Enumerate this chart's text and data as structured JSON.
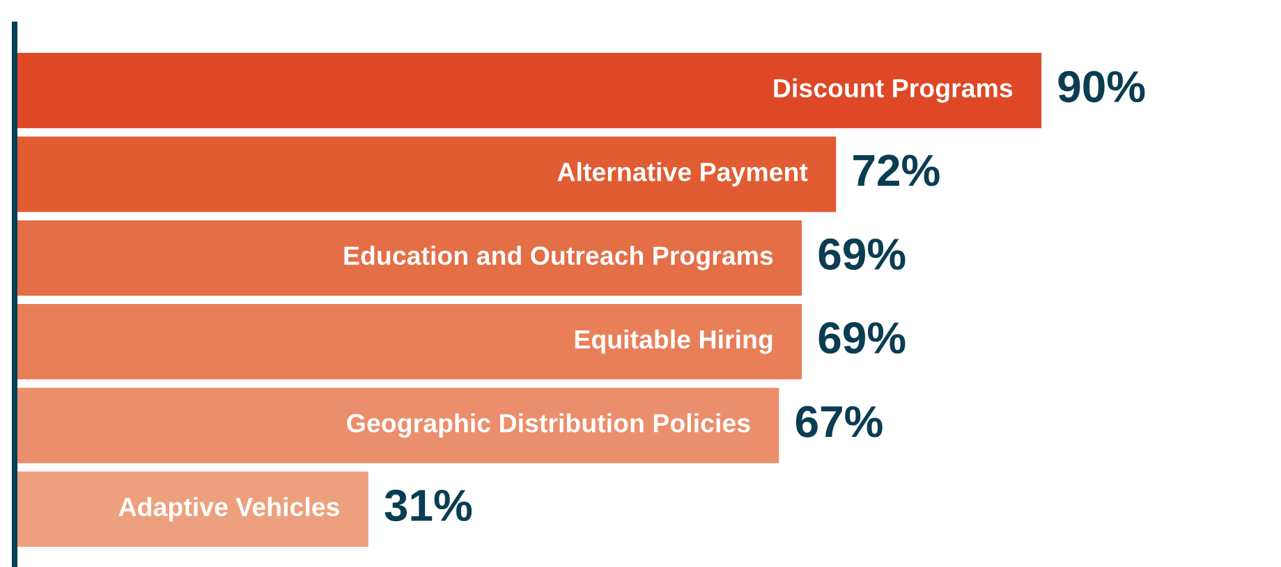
{
  "chart_data": {
    "type": "bar",
    "orientation": "horizontal",
    "categories": [
      "Discount Programs",
      "Alternative Payment",
      "Education and Outreach Programs",
      "Equitable Hiring",
      "Geographic Distribution Policies",
      "Adaptive Vehicles"
    ],
    "values": [
      90,
      72,
      69,
      69,
      67,
      31
    ],
    "colors": [
      "#de4826",
      "#e15c33",
      "#e46e45",
      "#e87f59",
      "#eb8e6b",
      "#eda07e"
    ],
    "value_labels": [
      "90%",
      "72%",
      "69%",
      "69%",
      "67%",
      "31%"
    ],
    "tick_labels": "y"
  }
}
